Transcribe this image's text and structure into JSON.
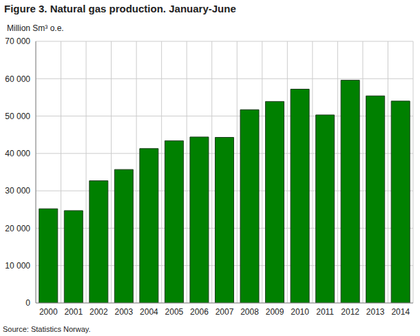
{
  "chart_data": {
    "type": "bar",
    "title": "Figure 3. Natural gas production. January-June",
    "y_label": "Million Sm³ o.e.",
    "source": "Source: Statistics Norway.",
    "categories": [
      "2000",
      "2001",
      "2002",
      "2003",
      "2004",
      "2005",
      "2006",
      "2007",
      "2008",
      "2009",
      "2010",
      "2011",
      "2012",
      "2013",
      "2014"
    ],
    "values": [
      25200,
      24700,
      32700,
      35700,
      41300,
      43400,
      44400,
      44300,
      51700,
      53900,
      57200,
      50300,
      59600,
      55400,
      54000
    ],
    "color": "#008000",
    "ylim": [
      0,
      70000
    ],
    "yticks": [
      0,
      {
        "value": 10000,
        "label": "10 000"
      },
      {
        "value": 20000,
        "label": "20 000"
      },
      {
        "value": 30000,
        "label": "30 000"
      },
      {
        "value": 40000,
        "label": "40 000"
      },
      {
        "value": 50000,
        "label": "50 000"
      },
      {
        "value": 60000,
        "label": "60 000"
      },
      {
        "value": 70000,
        "label": "70 000"
      }
    ],
    "grid": true
  }
}
